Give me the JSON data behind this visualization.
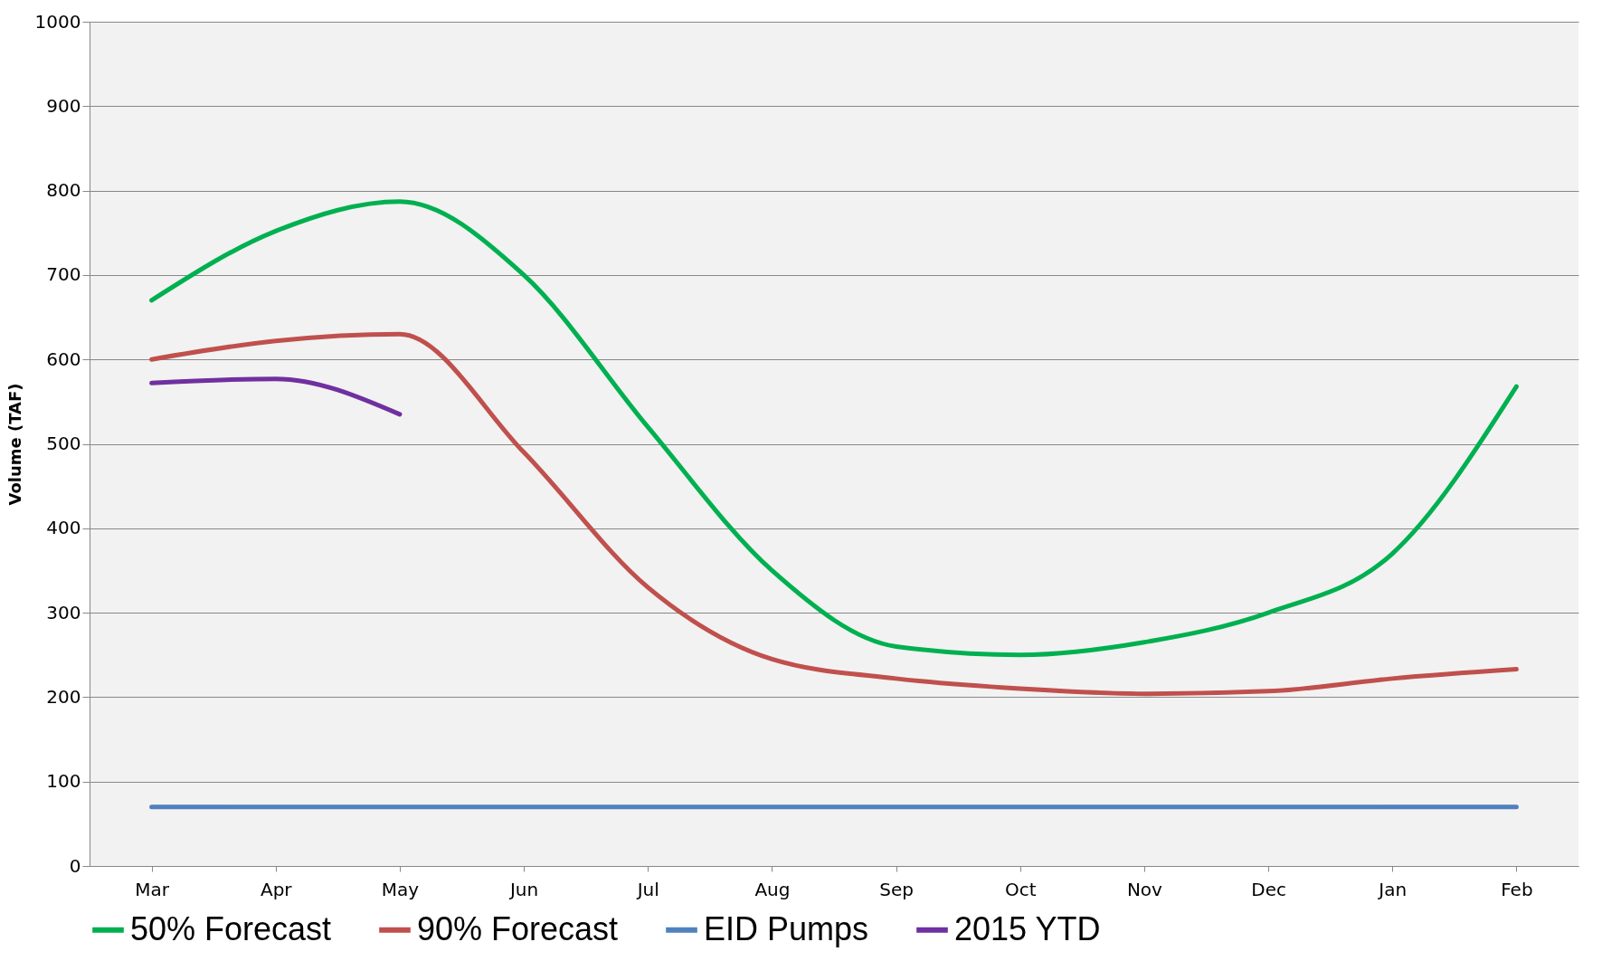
{
  "chart_data": {
    "type": "line",
    "ylabel": "Volume (TAF)",
    "categories": [
      "Mar",
      "Apr",
      "May",
      "Jun",
      "Jul",
      "Aug",
      "Sep",
      "Oct",
      "Nov",
      "Dec",
      "Jan",
      "Feb"
    ],
    "series": [
      {
        "name": "50% Forecast",
        "color": "#00b050",
        "values": [
          670,
          752,
          787,
          700,
          520,
          350,
          260,
          250,
          265,
          300,
          370,
          568
        ]
      },
      {
        "name": "90% Forecast",
        "color": "#c0504d",
        "values": [
          600,
          622,
          630,
          490,
          330,
          245,
          222,
          210,
          204,
          207,
          222,
          233
        ]
      },
      {
        "name": "EID Pumps",
        "color": "#4f81bd",
        "values": [
          70,
          70,
          70,
          70,
          70,
          70,
          70,
          70,
          70,
          70,
          70,
          70
        ]
      },
      {
        "name": "2015 YTD",
        "color": "#7030a0",
        "values": [
          572,
          577,
          535,
          null,
          null,
          null,
          null,
          null,
          null,
          null,
          null,
          null
        ]
      }
    ],
    "ylim": [
      0,
      1000
    ],
    "yticks": [
      0,
      100,
      200,
      300,
      400,
      500,
      600,
      700,
      800,
      900,
      1000
    ],
    "grid": "y",
    "legend": "bottom",
    "marker": "none",
    "line_style": "solid"
  }
}
